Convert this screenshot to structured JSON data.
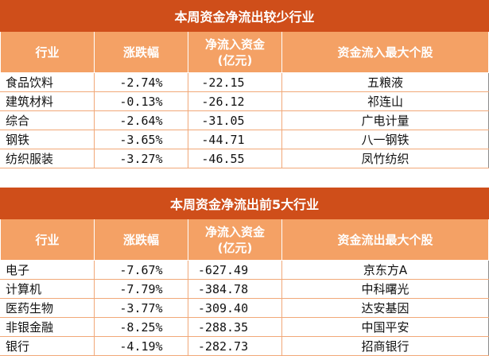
{
  "table1": {
    "title": "本周资金净流出较少行业",
    "headers": [
      "行业",
      "涨跌幅",
      "净流入资金\n(亿元)",
      "资金流入最大个股"
    ],
    "rows": [
      {
        "industry": "食品饮料",
        "change": "-2.74%",
        "net_flow": "-22.15",
        "top_stock": "五粮液"
      },
      {
        "industry": "建筑材料",
        "change": "-0.13%",
        "net_flow": "-26.12",
        "top_stock": "祁连山"
      },
      {
        "industry": "综合",
        "change": "-2.64%",
        "net_flow": "-31.05",
        "top_stock": "广电计量"
      },
      {
        "industry": "钢铁",
        "change": "-3.65%",
        "net_flow": "-44.71",
        "top_stock": "八一钢铁"
      },
      {
        "industry": "纺织服装",
        "change": "-3.27%",
        "net_flow": "-46.55",
        "top_stock": "凤竹纺织"
      }
    ]
  },
  "table2": {
    "title": "本周资金净流出前5大行业",
    "headers": [
      "行业",
      "涨跌幅",
      "净流入资金\n(亿元)",
      "资金流出最大个股"
    ],
    "rows": [
      {
        "industry": "电子",
        "change": "-7.67%",
        "net_flow": "-627.49",
        "top_stock": "京东方A"
      },
      {
        "industry": "计算机",
        "change": "-7.79%",
        "net_flow": "-384.78",
        "top_stock": "中科曙光"
      },
      {
        "industry": "医药生物",
        "change": "-3.77%",
        "net_flow": "-309.40",
        "top_stock": "达安基因"
      },
      {
        "industry": "非银金融",
        "change": "-8.25%",
        "net_flow": "-288.35",
        "top_stock": "中国平安"
      },
      {
        "industry": "银行",
        "change": "-4.19%",
        "net_flow": "-282.73",
        "top_stock": "招商银行"
      }
    ]
  }
}
